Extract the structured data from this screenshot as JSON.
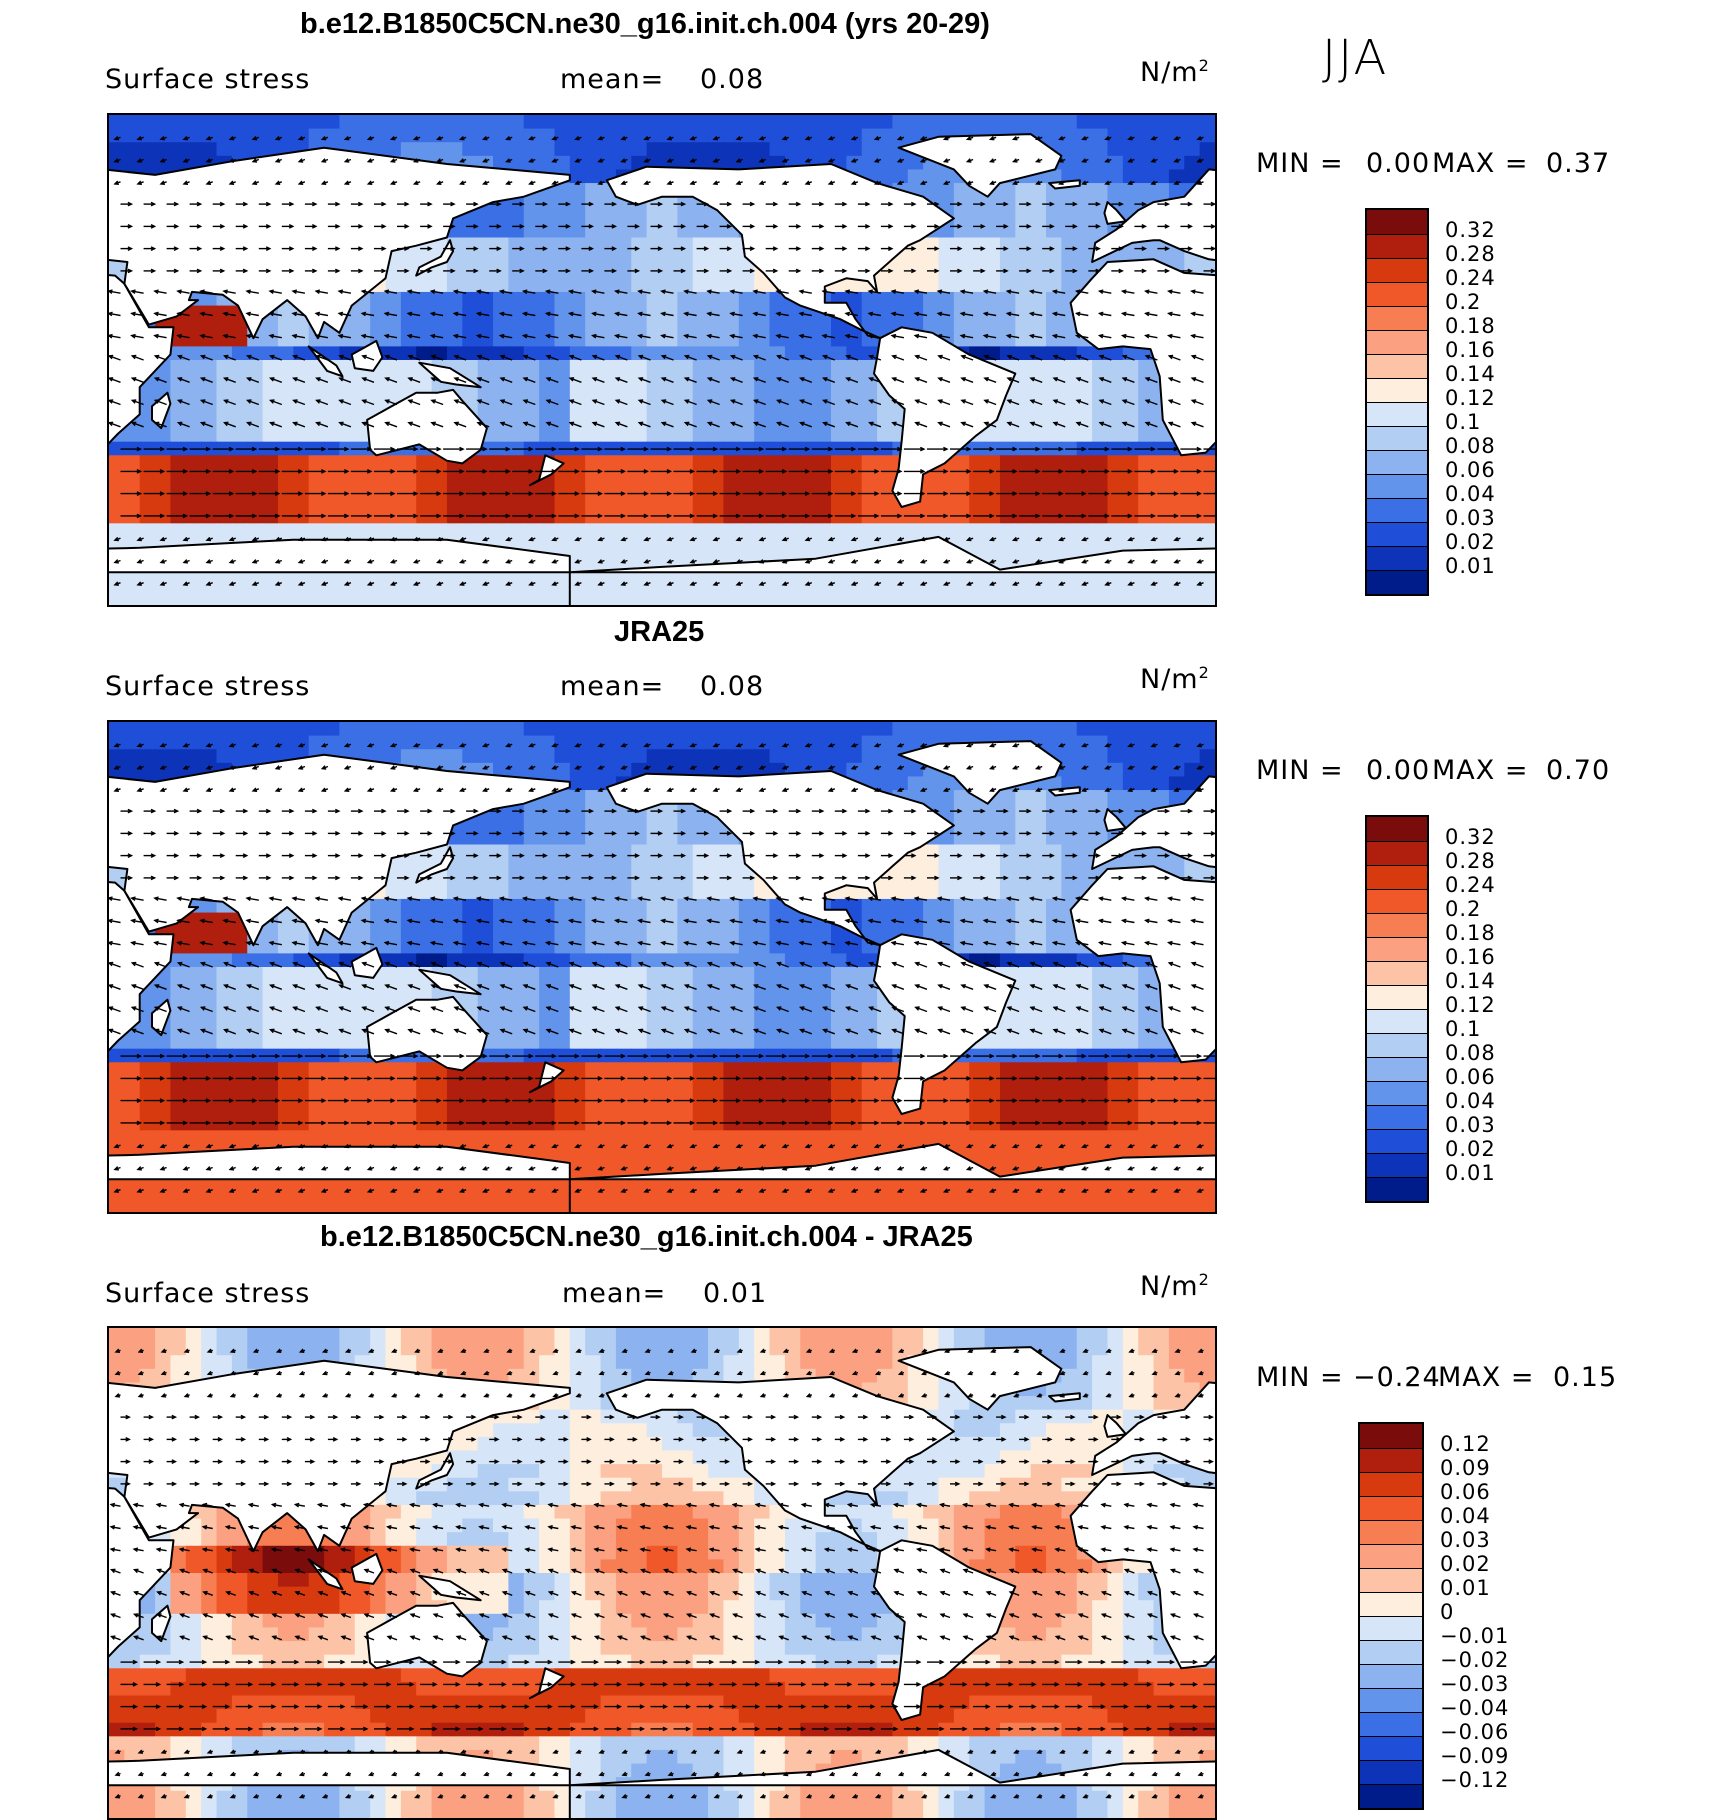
{
  "season": "JJA",
  "units_base": "N/m",
  "units_exp": "2",
  "panels": [
    {
      "title": "b.e12.B1850C5CN.ne30_g16.init.ch.004 (yrs 20-29)",
      "variable": "Surface stress",
      "mean_label": "mean=",
      "mean_value": "0.08",
      "min_label": "MIN =",
      "min_value": "0.00",
      "max_label": "MAX =",
      "max_value": "0.37",
      "levels": [
        "0.32",
        "0.28",
        "0.24",
        "0.2",
        "0.18",
        "0.16",
        "0.14",
        "0.12",
        "0.1",
        "0.08",
        "0.06",
        "0.04",
        "0.03",
        "0.02",
        "0.01"
      ],
      "colors": [
        "#7a0c0c",
        "#b01e0e",
        "#d83a10",
        "#f0582a",
        "#f77e52",
        "#fba080",
        "#fdc3a6",
        "#feeede",
        "#d6e6f8",
        "#b2cef3",
        "#8cb3f0",
        "#6394ec",
        "#3a6fe6",
        "#1f4fd8",
        "#0d34b8",
        "#001b8a"
      ]
    },
    {
      "title": "JRA25",
      "variable": "Surface stress",
      "mean_label": "mean=",
      "mean_value": "0.08",
      "min_label": "MIN =",
      "min_value": "0.00",
      "max_label": "MAX =",
      "max_value": "0.70",
      "levels": [
        "0.32",
        "0.28",
        "0.24",
        "0.2",
        "0.18",
        "0.16",
        "0.14",
        "0.12",
        "0.1",
        "0.08",
        "0.06",
        "0.04",
        "0.03",
        "0.02",
        "0.01"
      ],
      "colors": [
        "#7a0c0c",
        "#b01e0e",
        "#d83a10",
        "#f0582a",
        "#f77e52",
        "#fba080",
        "#fdc3a6",
        "#feeede",
        "#d6e6f8",
        "#b2cef3",
        "#8cb3f0",
        "#6394ec",
        "#3a6fe6",
        "#1f4fd8",
        "#0d34b8",
        "#001b8a"
      ]
    },
    {
      "title": "b.e12.B1850C5CN.ne30_g16.init.ch.004 - JRA25",
      "variable": "Surface stress",
      "mean_label": "mean=",
      "mean_value": "0.01",
      "min_label": "MIN =",
      "min_value": "−0.24",
      "max_label": "MAX =",
      "max_value": "0.15",
      "levels": [
        "0.12",
        "0.09",
        "0.06",
        "0.04",
        "0.03",
        "0.02",
        "0.01",
        "0",
        "−0.01",
        "−0.02",
        "−0.03",
        "−0.04",
        "−0.06",
        "−0.09",
        "−0.12"
      ],
      "colors": [
        "#7a0c0c",
        "#b01e0e",
        "#d83a10",
        "#f0582a",
        "#f77e52",
        "#fba080",
        "#fdc3a6",
        "#feeede",
        "#d6e6f8",
        "#b2cef3",
        "#8cb3f0",
        "#6394ec",
        "#3a6fe6",
        "#1f4fd8",
        "#0d34b8",
        "#001b8a"
      ]
    }
  ],
  "map_colors": {
    "land": "#ffffff",
    "coast": "#000000",
    "arrow": "#000000"
  }
}
